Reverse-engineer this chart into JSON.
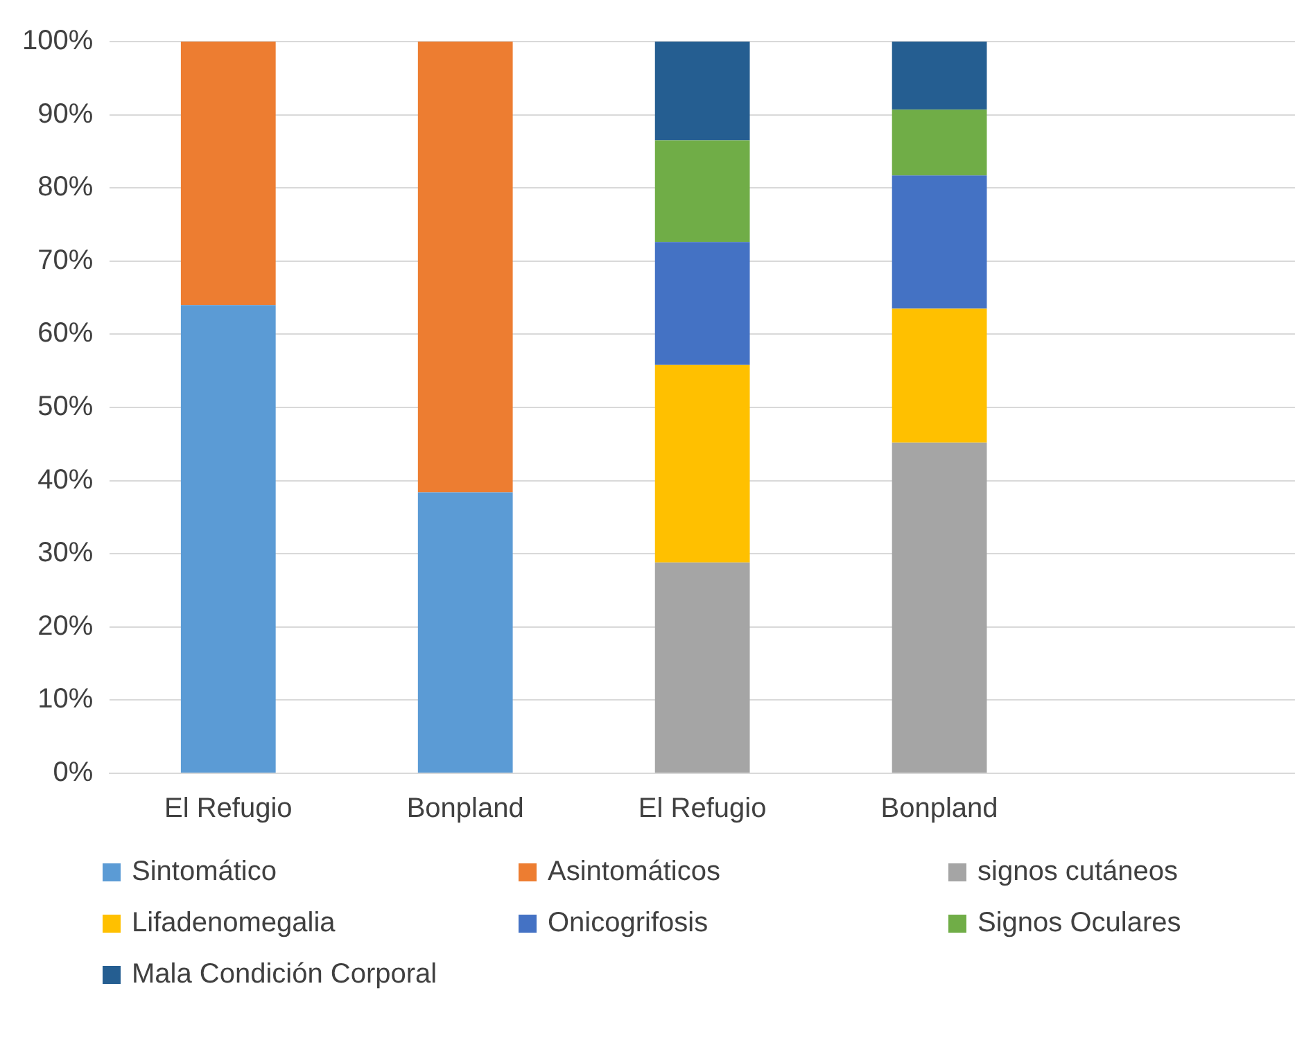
{
  "chart_data": {
    "type": "bar",
    "stacked": true,
    "categories": [
      "El Refugio",
      "Bonpland",
      "El Refugio",
      "Bonpland",
      null
    ],
    "series": [
      {
        "name": "Sintomático",
        "color": "#5b9bd5",
        "values": [
          64,
          38.4,
          null,
          null,
          null
        ]
      },
      {
        "name": "Asintomáticos",
        "color": "#ed7d31",
        "values": [
          36,
          61.6,
          null,
          null,
          null
        ]
      },
      {
        "name": "signos cutáneos",
        "color": "#a5a5a5",
        "values": [
          null,
          null,
          28.8,
          45.2,
          null
        ]
      },
      {
        "name": "Lifadenomegalia",
        "color": "#ffc000",
        "values": [
          null,
          null,
          27,
          18.3,
          null
        ]
      },
      {
        "name": "Onicogrifosis",
        "color": "#4472c4",
        "values": [
          null,
          null,
          16.8,
          18.2,
          null
        ]
      },
      {
        "name": "Signos Oculares",
        "color": "#70ad47",
        "values": [
          null,
          null,
          13.9,
          9,
          null
        ]
      },
      {
        "name": "Mala Condición Corporal",
        "color": "#255e91",
        "values": [
          null,
          null,
          13.5,
          9.3,
          null
        ]
      }
    ],
    "ylim": [
      0,
      100
    ],
    "yticks": [
      {
        "value": 0,
        "label": "0%"
      },
      {
        "value": 10,
        "label": "10%"
      },
      {
        "value": 20,
        "label": "20%"
      },
      {
        "value": 30,
        "label": "30%"
      },
      {
        "value": 40,
        "label": "40%"
      },
      {
        "value": 50,
        "label": "50%"
      },
      {
        "value": 60,
        "label": "60%"
      },
      {
        "value": 70,
        "label": "70%"
      },
      {
        "value": 80,
        "label": "80%"
      },
      {
        "value": 90,
        "label": "90%"
      },
      {
        "value": 100,
        "label": "100%"
      }
    ],
    "grid": "y",
    "legend": "bottom"
  }
}
